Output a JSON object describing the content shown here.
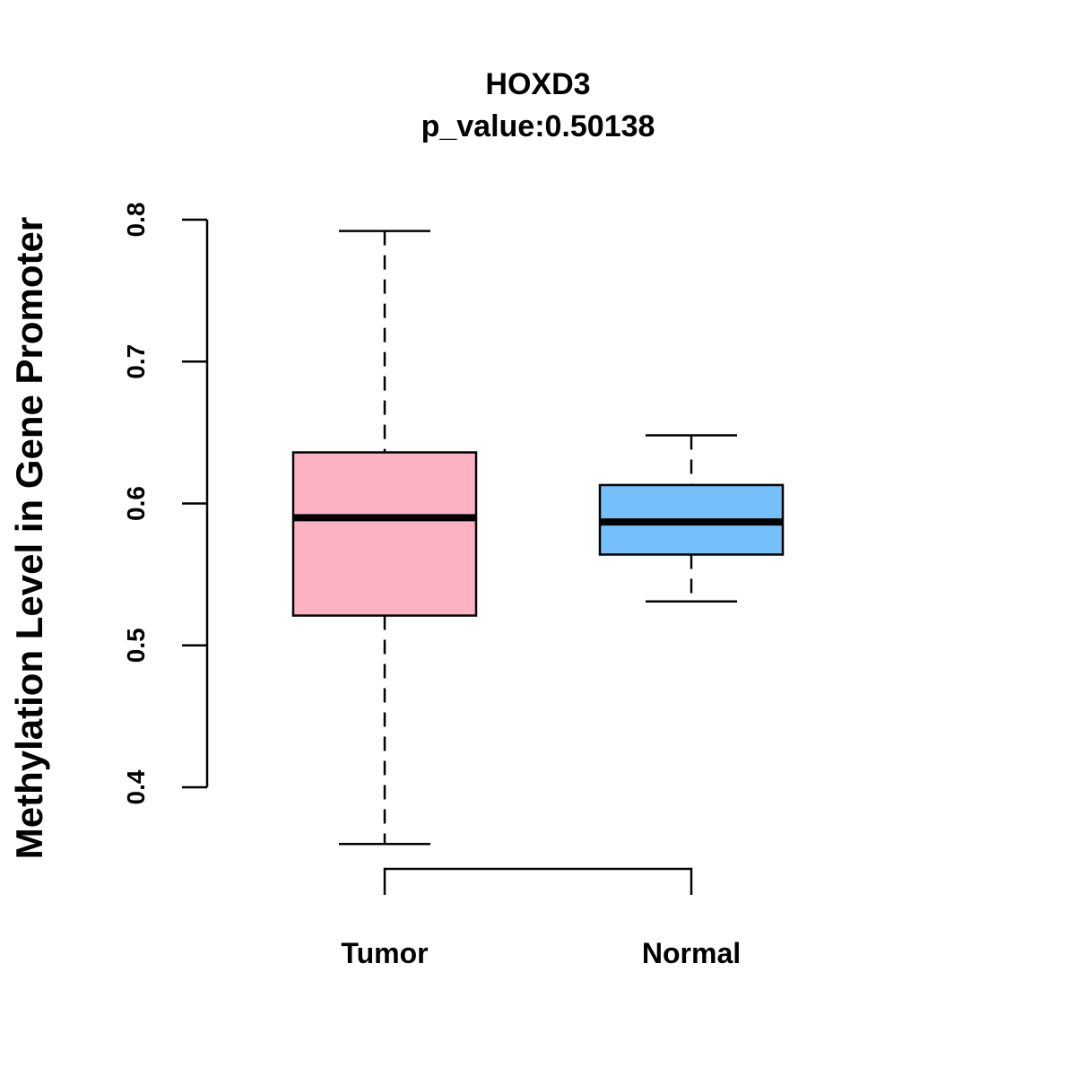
{
  "chart_data": {
    "type": "boxplot",
    "title": "HOXD3",
    "subtitle": "p_value:0.50138",
    "xlabel": "",
    "ylabel": "Methylation Level in Gene Promoter",
    "ylim": [
      0.4,
      0.8
    ],
    "yticks": [
      "0.4",
      "0.5",
      "0.6",
      "0.7",
      "0.8"
    ],
    "grid": false,
    "categories": [
      "Tumor",
      "Normal"
    ],
    "series": [
      {
        "name": "Tumor",
        "color": "#FDB2C3",
        "whisker_low": 0.36,
        "q1": 0.521,
        "median": 0.59,
        "q3": 0.636,
        "whisker_high": 0.792
      },
      {
        "name": "Normal",
        "color": "#75C0FA",
        "whisker_low": 0.531,
        "q1": 0.564,
        "median": 0.587,
        "q3": 0.613,
        "whisker_high": 0.648
      }
    ]
  }
}
